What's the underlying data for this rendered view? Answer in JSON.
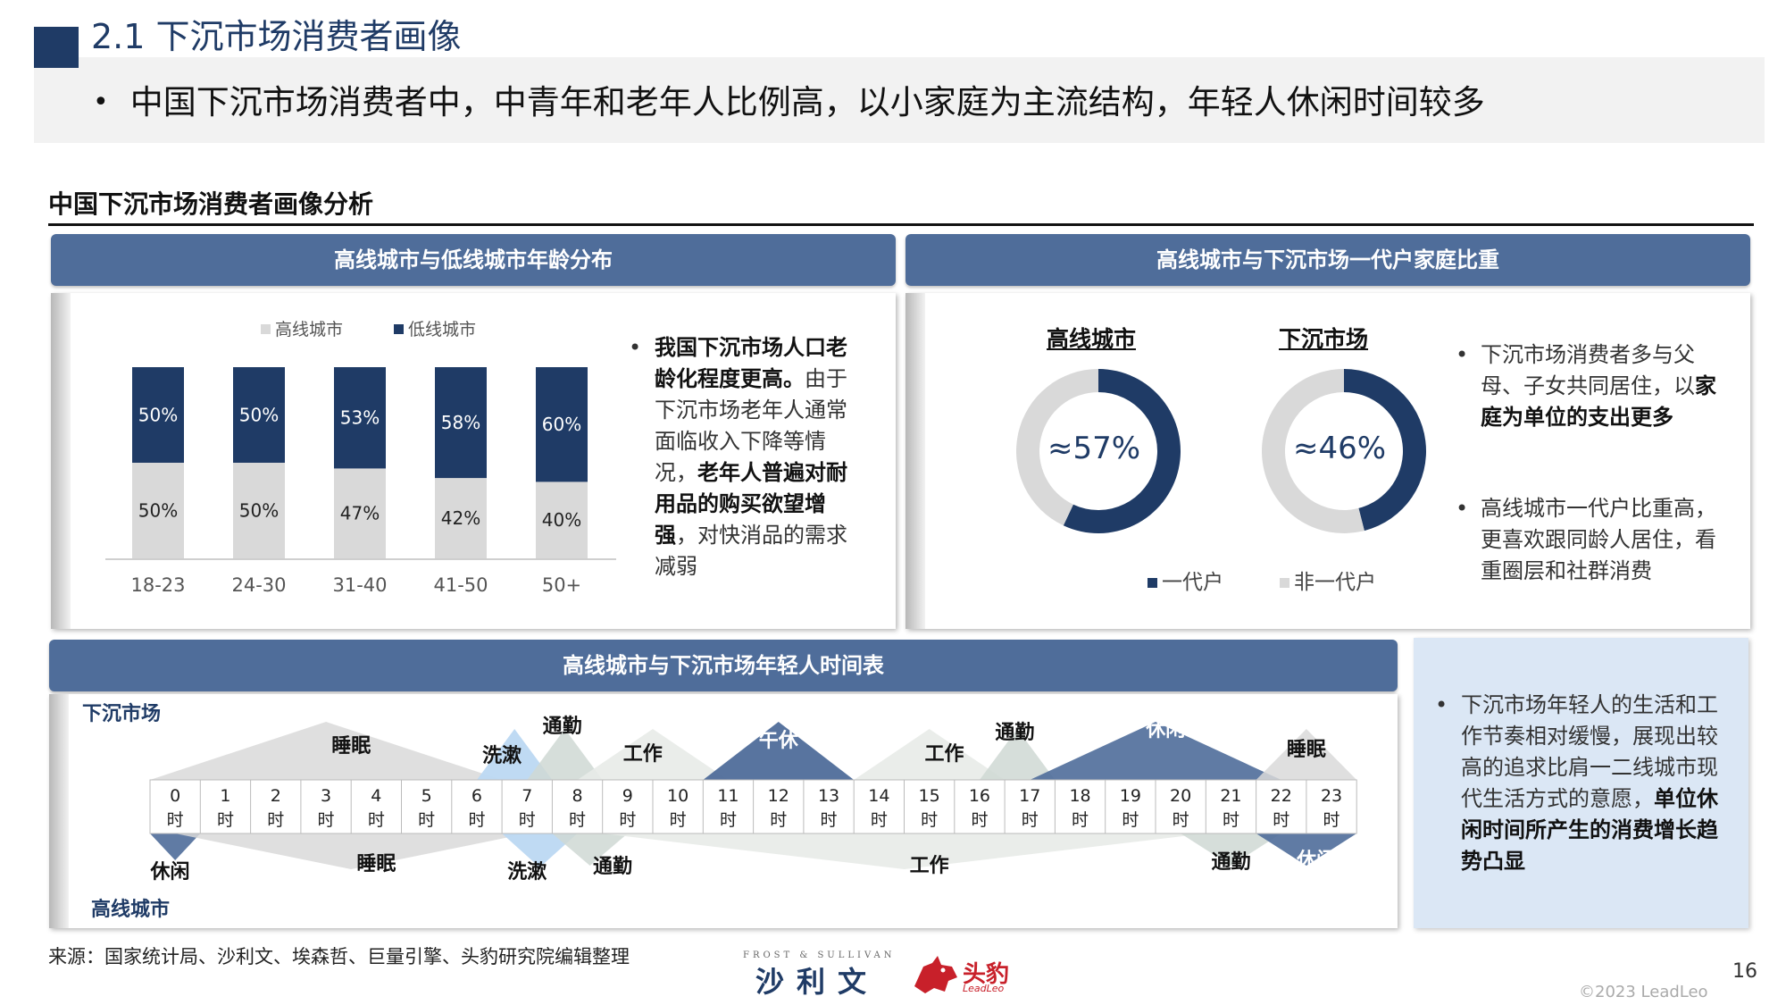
{
  "header": {
    "title": "2.1 下沉市场消费者画像",
    "subtitle_bullet": "•",
    "subtitle": "中国下沉市场消费者中，中青年和老年人比例高，以小家庭为主流结构，年轻人休闲时间较多"
  },
  "section_title": "中国下沉市场消费者画像分析",
  "panel_age": {
    "heading": "高线城市与低线城市年龄分布",
    "bullet": "•",
    "text_bold_1": "我国下沉市场人口老龄化程度更高。",
    "text_1": "由于下沉市场老年人通常面临收入下降等情况，",
    "text_bold_2": "老年人普遍对耐用品的购买欲望增强",
    "text_2": "，对快消品的需求减弱"
  },
  "panel_family": {
    "heading": "高线城市与下沉市场一代户家庭比重",
    "bullet_1_pre": "下沉市场消费者多与父母、子女共同居住，以",
    "bullet_1_bold": "家庭为单位的支出更多",
    "bullet_2": "高线城市一代户比重高，更喜欢跟同龄人居住，看重圈层和社群消费",
    "bullet_char": "•"
  },
  "panel_schedule": {
    "heading": "高线城市与下沉市场年轻人时间表",
    "note_pre": "下沉市场年轻人的生活和工作节奏相对缓慢，展现出较高的追求比肩一二线城市现代生活方式的意愿，",
    "note_bold": "单位休闲时间所产生的消费增长趋势凸显",
    "note_bullet": "•"
  },
  "footer": {
    "source": "来源：国家统计局、沙利文、埃森哲、巨量引擎、头豹研究院编辑整理",
    "page_number": "16",
    "copyright": "©2023 LeadLeo",
    "logo1_small": "FROST & SULLIVAN",
    "logo1": "沙利文",
    "logo2": "头豹",
    "logo2_sub": "LeadLeo"
  },
  "colors": {
    "dark_navy": "#1f3b66",
    "panel_header": "#4f6d9a",
    "light_gray": "#d9d9d9",
    "light_blue_box": "#dbe7f5"
  },
  "chart_data": [
    {
      "type": "bar",
      "stacked": true,
      "categories": [
        "18-23",
        "24-30",
        "31-40",
        "41-50",
        "50+"
      ],
      "series": [
        {
          "name": "高线城市",
          "values": [
            50,
            50,
            47,
            42,
            40
          ],
          "labels": [
            "50%",
            "50%",
            "47%",
            "42%",
            "40%"
          ],
          "color": "#d9d9d9"
        },
        {
          "name": "低线城市",
          "values": [
            50,
            50,
            53,
            58,
            60
          ],
          "labels": [
            "50%",
            "50%",
            "53%",
            "58%",
            "60%"
          ],
          "color": "#1f3b66"
        }
      ],
      "legend_position": "top",
      "grid": false
    },
    {
      "type": "pie",
      "donuts": [
        {
          "title": "高线城市",
          "value_label": "≈57%",
          "slices": [
            {
              "name": "一代户",
              "value": 57
            },
            {
              "name": "非一代户",
              "value": 43
            }
          ]
        },
        {
          "title": "下沉市场",
          "value_label": "≈46%",
          "slices": [
            {
              "name": "一代户",
              "value": 46
            },
            {
              "name": "非一代户",
              "value": 54
            }
          ]
        }
      ],
      "legend": [
        {
          "name": "一代户",
          "color": "#1f3b66"
        },
        {
          "name": "非一代户",
          "color": "#d9d9d9"
        }
      ],
      "legend_position": "bottom"
    },
    {
      "type": "table",
      "hours": [
        "0",
        "1",
        "2",
        "3",
        "4",
        "5",
        "6",
        "7",
        "8",
        "9",
        "10",
        "11",
        "12",
        "13",
        "14",
        "15",
        "16",
        "17",
        "18",
        "19",
        "20",
        "21",
        "22",
        "23"
      ],
      "hour_suffix": "时",
      "series_labels": {
        "top": "下沉市场",
        "bottom": "高线城市"
      },
      "top_activities": [
        {
          "label": "睡眠",
          "start": 0,
          "end": 7
        },
        {
          "label": "洗漱",
          "start": 6.5,
          "end": 8
        },
        {
          "label": "通勤",
          "start": 7.5,
          "end": 9
        },
        {
          "label": "工作",
          "start": 8.5,
          "end": 11.5
        },
        {
          "label": "午休",
          "start": 11,
          "end": 14
        },
        {
          "label": "工作",
          "start": 14,
          "end": 17
        },
        {
          "label": "通勤",
          "start": 16.5,
          "end": 18
        },
        {
          "label": "休闲",
          "start": 17.5,
          "end": 22.5
        },
        {
          "label": "睡眠",
          "start": 22,
          "end": 24
        }
      ],
      "bottom_activities": [
        {
          "label": "休闲",
          "start": 0,
          "end": 1
        },
        {
          "label": "睡眠",
          "start": 0.5,
          "end": 7.5
        },
        {
          "label": "洗漱",
          "start": 7,
          "end": 8.5
        },
        {
          "label": "通勤",
          "start": 8,
          "end": 9.5
        },
        {
          "label": "工作",
          "start": 9,
          "end": 21
        },
        {
          "label": "通勤",
          "start": 20.5,
          "end": 22.5
        },
        {
          "label": "休闲",
          "start": 22,
          "end": 24
        }
      ]
    }
  ]
}
